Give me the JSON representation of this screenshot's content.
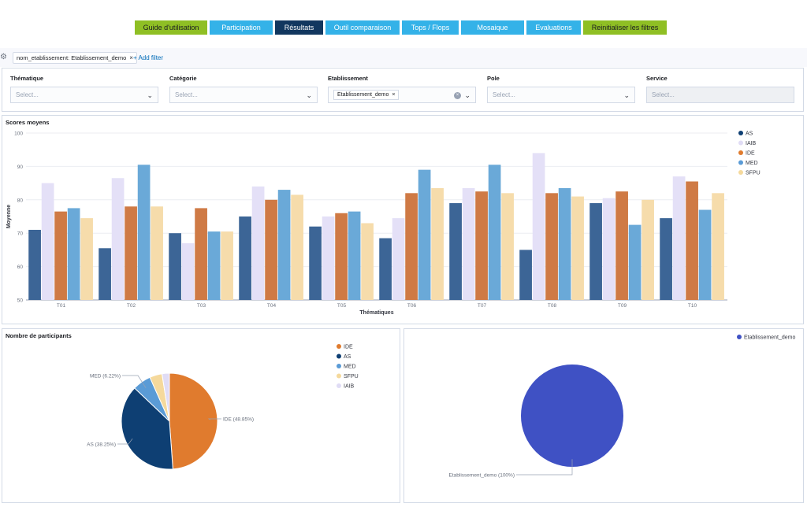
{
  "nav": [
    {
      "label": "Guide d'utilisation",
      "style": "green",
      "width": 92
    },
    {
      "label": "Participation",
      "style": "blue",
      "width": 80
    },
    {
      "label": "Résultats",
      "style": "dark",
      "width": 61
    },
    {
      "label": "Outil comparaison",
      "style": "blue",
      "width": 94
    },
    {
      "label": "Tops / Flops",
      "style": "blue",
      "width": 72
    },
    {
      "label": "Mosaique",
      "style": "blue",
      "width": 80
    },
    {
      "label": "Evaluations",
      "style": "blue",
      "width": 69
    },
    {
      "label": "Reinitialiser les filtres",
      "style": "green",
      "width": 106
    }
  ],
  "filterbar": {
    "pill_label": "nom_etablissement: Etablissement_demo",
    "add_filter": "+ Add filter"
  },
  "controls": [
    {
      "label": "Thématique",
      "placeholder": "Select...",
      "disabled": false
    },
    {
      "label": "Catégorie",
      "placeholder": "Select...",
      "disabled": false
    },
    {
      "label": "Etablissement",
      "placeholder": "",
      "chip": "Etablissement_demo",
      "disabled": false
    },
    {
      "label": "Pole",
      "placeholder": "Select...",
      "disabled": false
    },
    {
      "label": "Service",
      "placeholder": "Select...",
      "disabled": true
    }
  ],
  "colors": {
    "AS": "#3c6596",
    "IAIB": "#e4e0f7",
    "IDE": "#cf7a45",
    "MED": "#6aa9d8",
    "SFPU": "#f6dcab",
    "legend_AS": "#0e3f73",
    "legend_IAIB": "#e0dcf5",
    "legend_IDE": "#e07b2e",
    "legend_MED": "#5a9bd6",
    "legend_SFPU": "#f5d99c",
    "pie_IDE": "#e07b2e",
    "pie_AS": "#0e3f73",
    "pie_MED": "#5a9bd6",
    "pie_SFPU": "#f5d99c",
    "pie_IAIB": "#e0dcf5",
    "pie2": "#3f51c4"
  },
  "chart_data": [
    {
      "type": "bar",
      "title": "Scores moyens",
      "xlabel": "Thématiques",
      "ylabel": "Moyenne",
      "ylim": [
        50,
        100
      ],
      "yticks": [
        50,
        60,
        70,
        80,
        90,
        100
      ],
      "grid": true,
      "legend": "right",
      "categories": [
        "T01",
        "T02",
        "T03",
        "T04",
        "T05",
        "T06",
        "T07",
        "T08",
        "T09",
        "T10"
      ],
      "series": [
        {
          "name": "AS",
          "values": [
            71,
            65.5,
            70,
            75,
            72,
            68.5,
            79,
            65,
            79,
            74.5
          ]
        },
        {
          "name": "IAIB",
          "values": [
            85,
            86.5,
            67,
            84,
            75,
            74.5,
            83.5,
            94,
            80.5,
            87
          ]
        },
        {
          "name": "IDE",
          "values": [
            76.5,
            78,
            77.5,
            80,
            76,
            82,
            82.5,
            82,
            82.5,
            85.5
          ]
        },
        {
          "name": "MED",
          "values": [
            77.5,
            90.5,
            70.5,
            83,
            76.5,
            89,
            90.5,
            83.5,
            72.5,
            77
          ]
        },
        {
          "name": "SFPU",
          "values": [
            74.5,
            78,
            70.5,
            81.5,
            73,
            83.5,
            82,
            81,
            80,
            82
          ]
        }
      ]
    },
    {
      "type": "pie",
      "title": "Nombre de participants",
      "legend": "top-right",
      "slices": [
        {
          "name": "IDE",
          "value": 48.85,
          "label": "IDE (48.85%)"
        },
        {
          "name": "AS",
          "value": 38.25,
          "label": "AS (38.25%)"
        },
        {
          "name": "MED",
          "value": 6.22,
          "label": "MED (6.22%)"
        },
        {
          "name": "SFPU",
          "value": 4.2,
          "label": ""
        },
        {
          "name": "IAIB",
          "value": 2.48,
          "label": ""
        }
      ]
    },
    {
      "type": "pie",
      "title": "",
      "legend": "top-right",
      "slices": [
        {
          "name": "Etablissement_demo",
          "value": 100,
          "label": "Etablissement_demo (100%)"
        }
      ]
    }
  ]
}
